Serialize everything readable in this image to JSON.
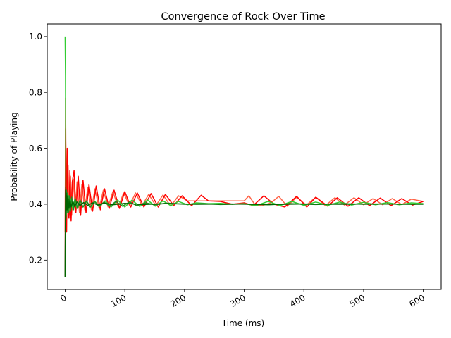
{
  "chart_data": {
    "type": "line",
    "title": "Convergence of Rock Over Time",
    "xlabel": "Time (ms)",
    "ylabel": "Probability of Playing",
    "xlim": [
      -30,
      630
    ],
    "ylim": [
      0.095,
      1.045
    ],
    "xticks": [
      0,
      100,
      200,
      300,
      400,
      500,
      600
    ],
    "xtick_labels": [
      "0",
      "100",
      "200",
      "300",
      "400",
      "500",
      "600"
    ],
    "yticks": [
      0.2,
      0.4,
      0.6,
      0.8,
      1.0
    ],
    "ytick_labels": [
      "0.2",
      "0.4",
      "0.6",
      "0.8",
      "1.0"
    ],
    "grid": false,
    "legend": "none",
    "series": [
      {
        "color": "#ff6347",
        "points": [
          [
            0,
            0.3
          ],
          [
            0.7,
            0.67
          ],
          [
            1.5,
            0.55
          ],
          [
            3,
            0.37
          ],
          [
            5,
            0.54
          ],
          [
            7,
            0.36
          ],
          [
            9,
            0.5
          ],
          [
            11,
            0.36
          ],
          [
            14,
            0.49
          ],
          [
            17,
            0.37
          ],
          [
            20,
            0.48
          ],
          [
            24,
            0.37
          ],
          [
            28,
            0.47
          ],
          [
            33,
            0.38
          ],
          [
            38,
            0.46
          ],
          [
            44,
            0.38
          ],
          [
            50,
            0.455
          ],
          [
            57,
            0.385
          ],
          [
            64,
            0.45
          ],
          [
            72,
            0.39
          ],
          [
            80,
            0.445
          ],
          [
            89,
            0.39
          ],
          [
            98,
            0.44
          ],
          [
            108,
            0.395
          ],
          [
            118,
            0.44
          ],
          [
            129,
            0.395
          ],
          [
            140,
            0.435
          ],
          [
            152,
            0.395
          ],
          [
            164,
            0.433
          ],
          [
            177,
            0.393
          ],
          [
            190,
            0.43
          ],
          [
            205,
            0.412
          ],
          [
            220,
            0.412
          ],
          [
            240,
            0.412
          ],
          [
            260,
            0.412
          ],
          [
            280,
            0.412
          ],
          [
            300,
            0.412
          ],
          [
            308,
            0.43
          ],
          [
            318,
            0.398
          ],
          [
            330,
            0.395
          ],
          [
            345,
            0.405
          ],
          [
            358,
            0.428
          ],
          [
            372,
            0.393
          ],
          [
            388,
            0.425
          ],
          [
            404,
            0.397
          ],
          [
            420,
            0.425
          ],
          [
            436,
            0.395
          ],
          [
            452,
            0.423
          ],
          [
            468,
            0.397
          ],
          [
            484,
            0.423
          ],
          [
            500,
            0.398
          ],
          [
            516,
            0.42
          ],
          [
            532,
            0.398
          ],
          [
            548,
            0.42
          ],
          [
            564,
            0.399
          ],
          [
            580,
            0.418
          ],
          [
            600,
            0.41
          ]
        ]
      },
      {
        "color": "#ff0000",
        "points": [
          [
            0,
            0.14
          ],
          [
            0.8,
            0.78
          ],
          [
            1.6,
            0.4
          ],
          [
            2.5,
            0.3
          ],
          [
            3.5,
            0.6
          ],
          [
            5,
            0.38
          ],
          [
            6.5,
            0.35
          ],
          [
            8,
            0.52
          ],
          [
            10,
            0.34
          ],
          [
            12,
            0.48
          ],
          [
            15,
            0.52
          ],
          [
            18,
            0.37
          ],
          [
            22,
            0.5
          ],
          [
            26,
            0.36
          ],
          [
            30,
            0.485
          ],
          [
            35,
            0.37
          ],
          [
            40,
            0.47
          ],
          [
            46,
            0.375
          ],
          [
            52,
            0.465
          ],
          [
            59,
            0.38
          ],
          [
            66,
            0.455
          ],
          [
            74,
            0.385
          ],
          [
            82,
            0.45
          ],
          [
            91,
            0.385
          ],
          [
            100,
            0.445
          ],
          [
            110,
            0.39
          ],
          [
            121,
            0.44
          ],
          [
            132,
            0.39
          ],
          [
            144,
            0.438
          ],
          [
            156,
            0.39
          ],
          [
            168,
            0.435
          ],
          [
            182,
            0.395
          ],
          [
            196,
            0.43
          ],
          [
            212,
            0.395
          ],
          [
            228,
            0.432
          ],
          [
            240,
            0.412
          ],
          [
            260,
            0.41
          ],
          [
            280,
            0.4
          ],
          [
            300,
            0.405
          ],
          [
            315,
            0.395
          ],
          [
            333,
            0.43
          ],
          [
            350,
            0.4
          ],
          [
            368,
            0.39
          ],
          [
            388,
            0.428
          ],
          [
            405,
            0.39
          ],
          [
            420,
            0.425
          ],
          [
            440,
            0.393
          ],
          [
            456,
            0.423
          ],
          [
            474,
            0.393
          ],
          [
            492,
            0.423
          ],
          [
            510,
            0.395
          ],
          [
            528,
            0.422
          ],
          [
            546,
            0.395
          ],
          [
            564,
            0.42
          ],
          [
            582,
            0.397
          ],
          [
            600,
            0.41
          ]
        ]
      },
      {
        "color": "#32cd32",
        "points": [
          [
            0,
            1.0
          ],
          [
            0.6,
            0.86
          ],
          [
            1.2,
            0.45
          ],
          [
            2,
            0.36
          ],
          [
            3,
            0.44
          ],
          [
            4.5,
            0.38
          ],
          [
            6,
            0.43
          ],
          [
            8,
            0.375
          ],
          [
            10,
            0.42
          ],
          [
            13,
            0.38
          ],
          [
            16,
            0.415
          ],
          [
            20,
            0.385
          ],
          [
            25,
            0.415
          ],
          [
            30,
            0.39
          ],
          [
            36,
            0.41
          ],
          [
            43,
            0.39
          ],
          [
            50,
            0.41
          ],
          [
            58,
            0.392
          ],
          [
            67,
            0.412
          ],
          [
            77,
            0.39
          ],
          [
            88,
            0.415
          ],
          [
            100,
            0.39
          ],
          [
            112,
            0.415
          ],
          [
            125,
            0.392
          ],
          [
            138,
            0.415
          ],
          [
            151,
            0.393
          ],
          [
            164,
            0.412
          ],
          [
            177,
            0.395
          ],
          [
            190,
            0.41
          ],
          [
            205,
            0.398
          ],
          [
            220,
            0.405
          ],
          [
            240,
            0.402
          ],
          [
            260,
            0.403
          ],
          [
            280,
            0.4
          ],
          [
            300,
            0.402
          ],
          [
            320,
            0.395
          ],
          [
            340,
            0.41
          ],
          [
            360,
            0.395
          ],
          [
            380,
            0.41
          ],
          [
            400,
            0.396
          ],
          [
            420,
            0.408
          ],
          [
            440,
            0.396
          ],
          [
            460,
            0.408
          ],
          [
            480,
            0.397
          ],
          [
            500,
            0.407
          ],
          [
            520,
            0.398
          ],
          [
            540,
            0.406
          ],
          [
            560,
            0.398
          ],
          [
            580,
            0.405
          ],
          [
            600,
            0.402
          ]
        ]
      },
      {
        "color": "#228b22",
        "points": [
          [
            0,
            0.14
          ],
          [
            0.5,
            0.34
          ],
          [
            1,
            0.46
          ],
          [
            1.6,
            0.35
          ],
          [
            2.3,
            0.45
          ],
          [
            3.2,
            0.37
          ],
          [
            4.2,
            0.44
          ],
          [
            5.5,
            0.37
          ],
          [
            7,
            0.43
          ],
          [
            9,
            0.375
          ],
          [
            11,
            0.425
          ],
          [
            14,
            0.38
          ],
          [
            17,
            0.42
          ],
          [
            21,
            0.385
          ],
          [
            25,
            0.415
          ],
          [
            30,
            0.39
          ],
          [
            36,
            0.412
          ],
          [
            42,
            0.39
          ],
          [
            49,
            0.41
          ],
          [
            57,
            0.392
          ],
          [
            65,
            0.408
          ],
          [
            75,
            0.393
          ],
          [
            85,
            0.41
          ],
          [
            96,
            0.393
          ],
          [
            108,
            0.408
          ],
          [
            120,
            0.395
          ],
          [
            135,
            0.405
          ],
          [
            150,
            0.398
          ],
          [
            170,
            0.404
          ],
          [
            200,
            0.4
          ],
          [
            230,
            0.402
          ],
          [
            260,
            0.399
          ],
          [
            300,
            0.401
          ],
          [
            340,
            0.398
          ],
          [
            380,
            0.402
          ],
          [
            420,
            0.399
          ],
          [
            460,
            0.402
          ],
          [
            500,
            0.4
          ],
          [
            540,
            0.401
          ],
          [
            580,
            0.4
          ],
          [
            600,
            0.401
          ]
        ]
      },
      {
        "color": "#006400",
        "points": [
          [
            0,
            0.14
          ],
          [
            0.4,
            0.32
          ],
          [
            0.8,
            0.45
          ],
          [
            1.3,
            0.4
          ],
          [
            1.8,
            0.44
          ],
          [
            2.4,
            0.38
          ],
          [
            3.1,
            0.43
          ],
          [
            4,
            0.38
          ],
          [
            5,
            0.42
          ],
          [
            6.5,
            0.385
          ],
          [
            8,
            0.415
          ],
          [
            10,
            0.39
          ],
          [
            13,
            0.41
          ],
          [
            16,
            0.392
          ],
          [
            20,
            0.408
          ],
          [
            25,
            0.395
          ],
          [
            31,
            0.406
          ],
          [
            38,
            0.396
          ],
          [
            46,
            0.405
          ],
          [
            55,
            0.397
          ],
          [
            66,
            0.404
          ],
          [
            80,
            0.398
          ],
          [
            100,
            0.403
          ],
          [
            130,
            0.399
          ],
          [
            170,
            0.402
          ],
          [
            220,
            0.4
          ],
          [
            280,
            0.401
          ],
          [
            340,
            0.399
          ],
          [
            400,
            0.401
          ],
          [
            460,
            0.4
          ],
          [
            520,
            0.401
          ],
          [
            600,
            0.4
          ]
        ]
      }
    ]
  }
}
